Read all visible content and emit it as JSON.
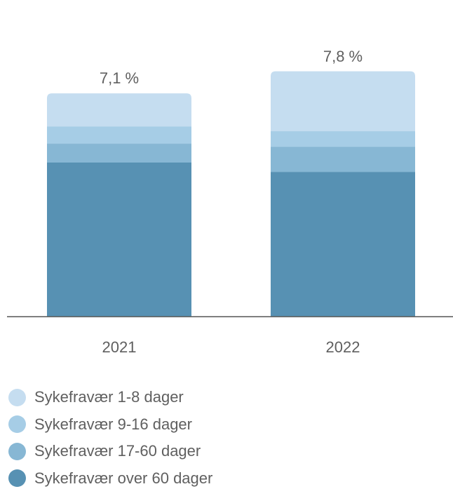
{
  "chart_data": {
    "type": "bar",
    "stacked": true,
    "categories": [
      "2021",
      "2022"
    ],
    "totals": [
      "7,1 %",
      "7,8 %"
    ],
    "series": [
      {
        "name": "Sykefravær over 60 dager",
        "color": "#5791b3",
        "values": [
          4.9,
          4.6
        ]
      },
      {
        "name": "Sykefravær 17-60 dager",
        "color": "#87b7d4",
        "values": [
          0.6,
          0.8
        ]
      },
      {
        "name": "Sykefravær 9-16 dager",
        "color": "#a6cde6",
        "values": [
          0.55,
          0.5
        ]
      },
      {
        "name": "Sykefravær 1-8 dager",
        "color": "#c5ddf0",
        "values": [
          1.05,
          1.9
        ]
      }
    ],
    "legend_order": [
      3,
      2,
      1,
      0
    ],
    "legend_position": "bottom-left",
    "ylim": [
      0,
      10
    ],
    "grid": false,
    "axis_color": "#555555"
  }
}
